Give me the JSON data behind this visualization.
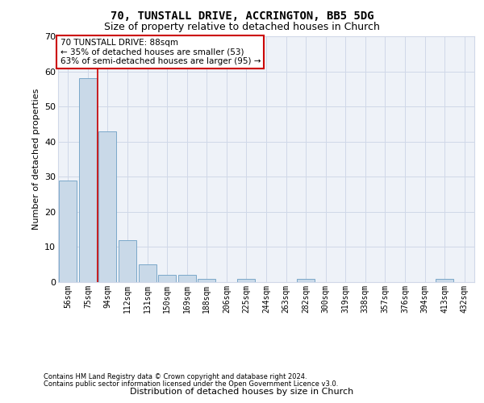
{
  "title1": "70, TUNSTALL DRIVE, ACCRINGTON, BB5 5DG",
  "title2": "Size of property relative to detached houses in Church",
  "xlabel": "Distribution of detached houses by size in Church",
  "ylabel": "Number of detached properties",
  "bar_labels": [
    "56sqm",
    "75sqm",
    "94sqm",
    "112sqm",
    "131sqm",
    "150sqm",
    "169sqm",
    "188sqm",
    "206sqm",
    "225sqm",
    "244sqm",
    "263sqm",
    "282sqm",
    "300sqm",
    "319sqm",
    "338sqm",
    "357sqm",
    "376sqm",
    "394sqm",
    "413sqm",
    "432sqm"
  ],
  "bar_values": [
    29,
    58,
    43,
    12,
    5,
    2,
    2,
    1,
    0,
    1,
    0,
    0,
    1,
    0,
    0,
    0,
    0,
    0,
    0,
    1,
    0
  ],
  "bar_color": "#c9d9e8",
  "bar_edge_color": "#7aa8c9",
  "red_line_x": 1.5,
  "ylim": [
    0,
    70
  ],
  "yticks": [
    0,
    10,
    20,
    30,
    40,
    50,
    60,
    70
  ],
  "annotation_text": "70 TUNSTALL DRIVE: 88sqm\n← 35% of detached houses are smaller (53)\n63% of semi-detached houses are larger (95) →",
  "annotation_box_color": "#ffffff",
  "annotation_box_edge": "#cc0000",
  "footer1": "Contains HM Land Registry data © Crown copyright and database right 2024.",
  "footer2": "Contains public sector information licensed under the Open Government Licence v3.0.",
  "grid_color": "#d0d8e8",
  "background_color": "#eef2f8",
  "title1_fontsize": 10,
  "title2_fontsize": 9,
  "ylabel_fontsize": 8,
  "xlabel_fontsize": 8,
  "tick_fontsize": 7,
  "footer_fontsize": 6
}
